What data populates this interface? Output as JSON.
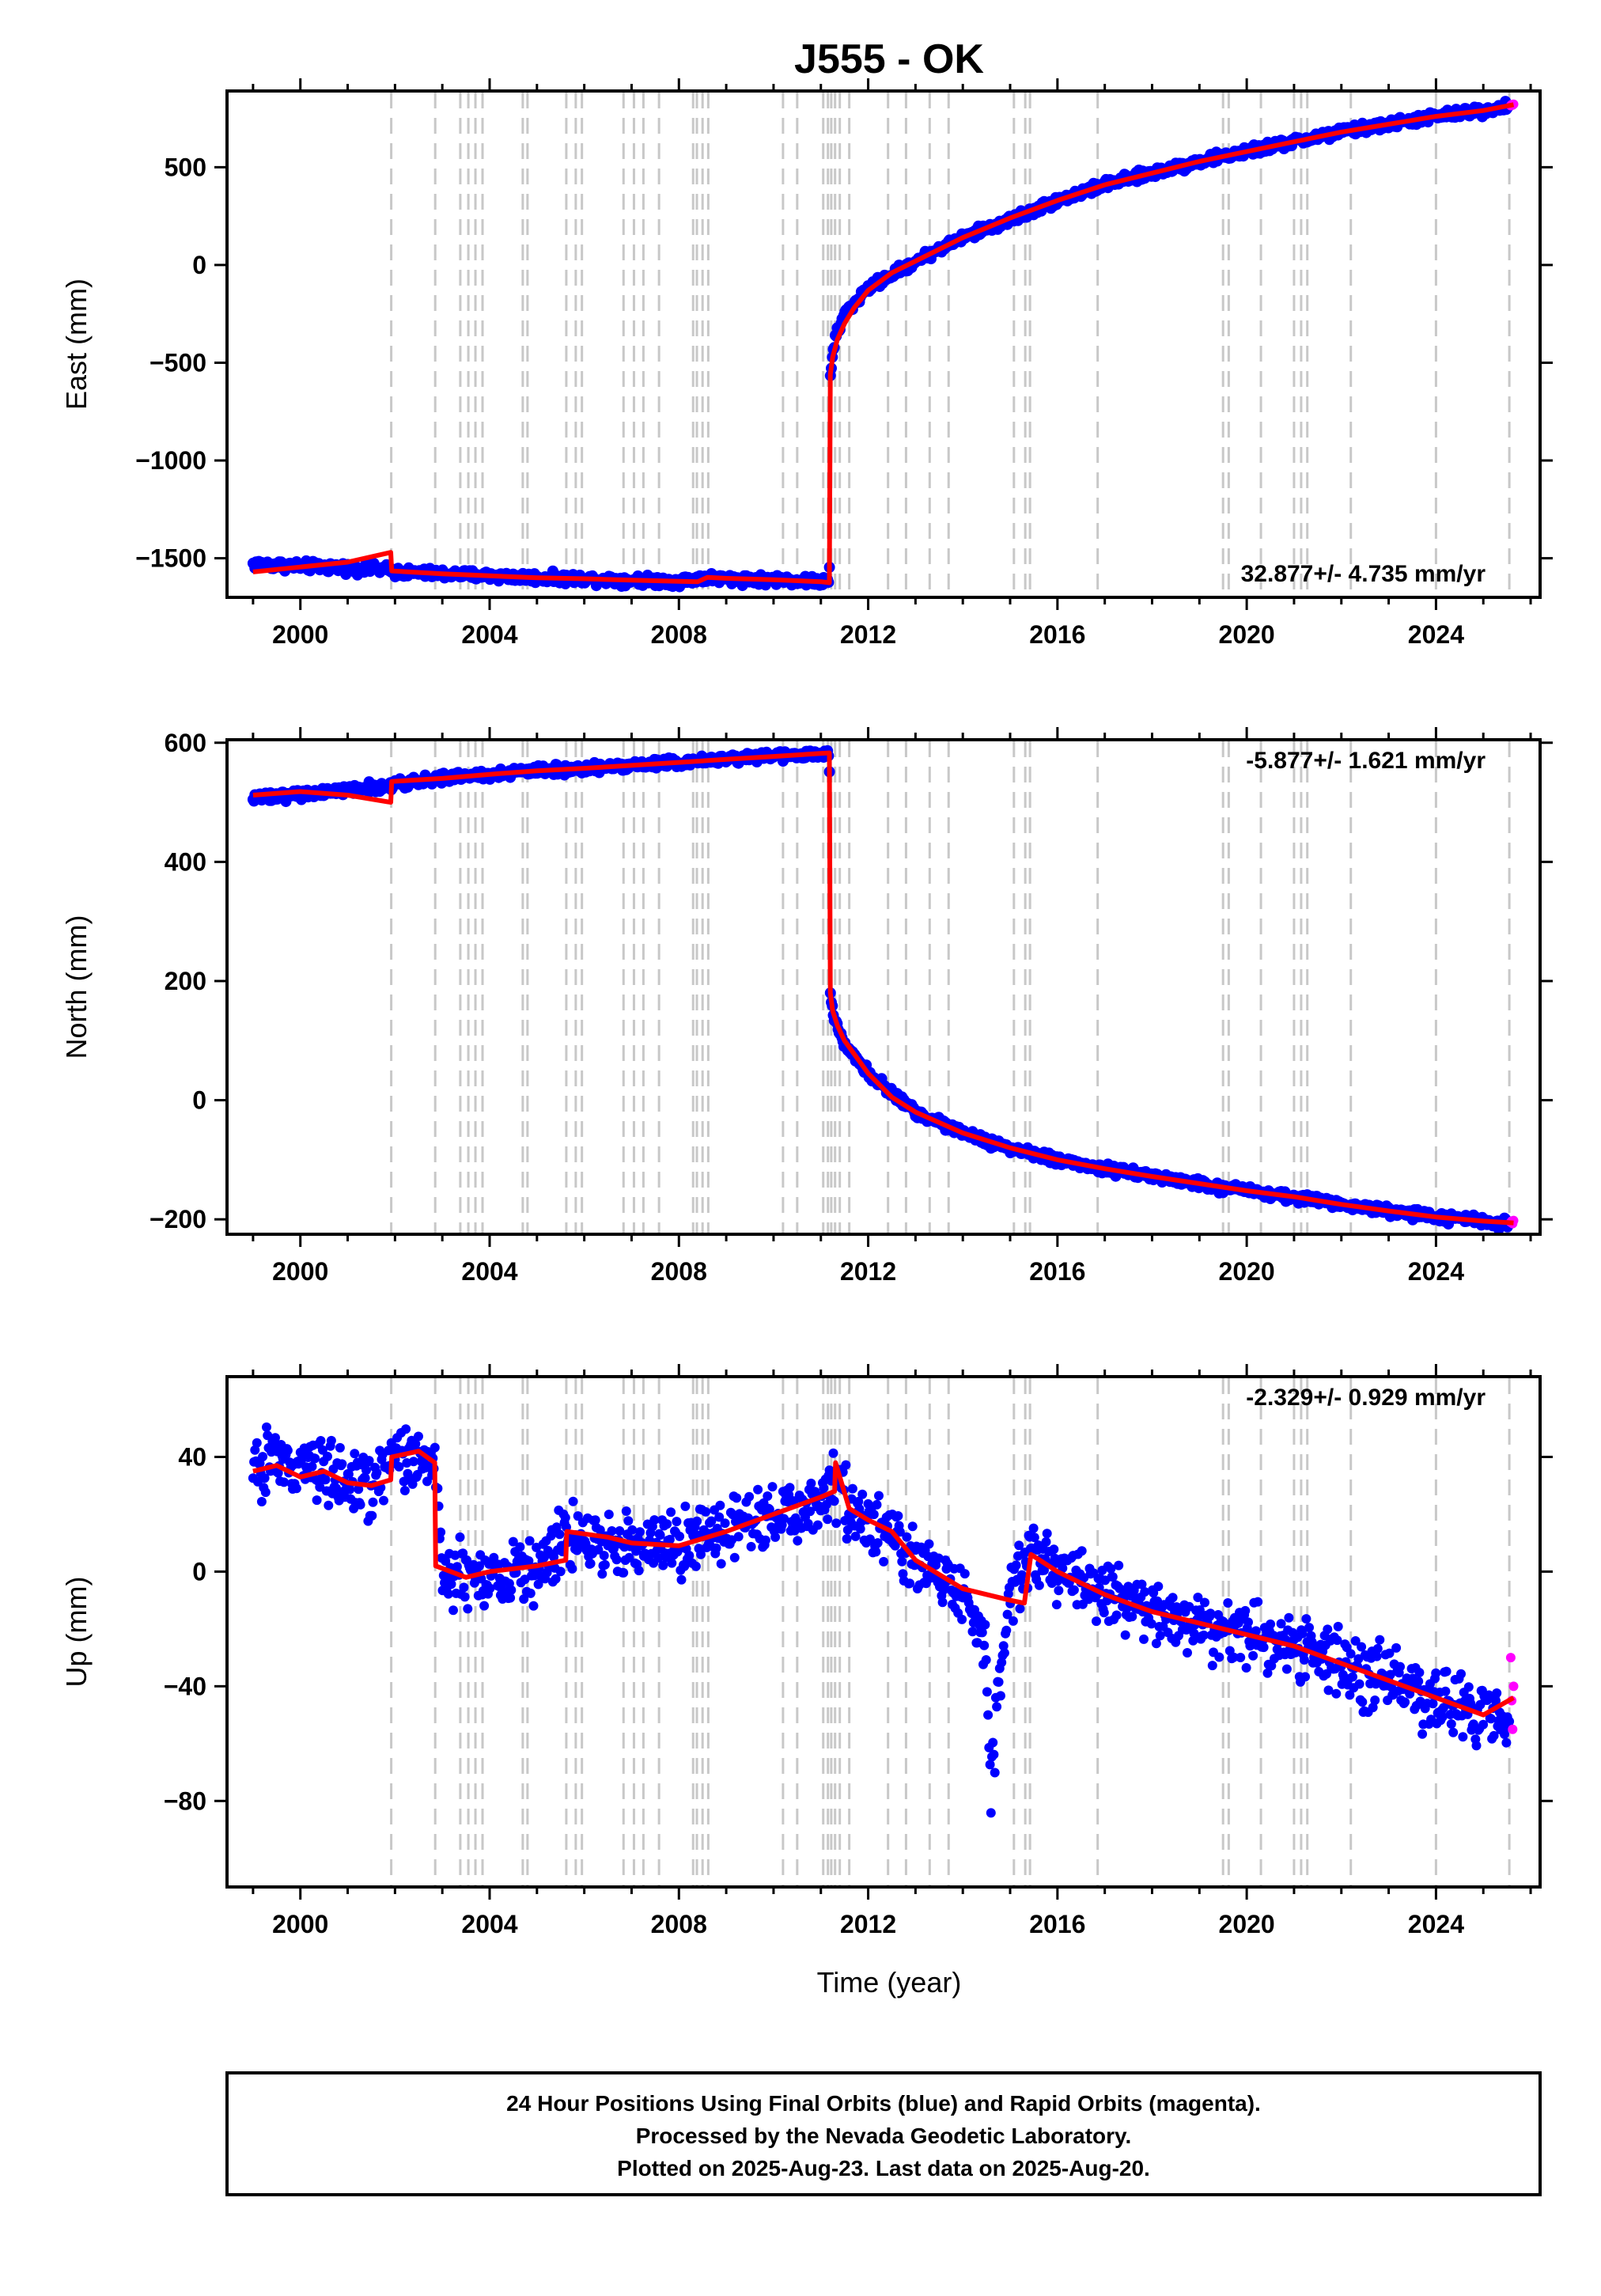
{
  "title": "J555 - OK",
  "colors": {
    "final": "#0000ff",
    "rapid": "#ff00ff",
    "model": "#ff0000",
    "event": "#c8c8c8"
  },
  "xlabel": "Time (year)",
  "x_ticks": [
    "2000",
    "2004",
    "2008",
    "2012",
    "2016",
    "2020",
    "2024"
  ],
  "events": [
    2001.92,
    2002.85,
    2003.38,
    2003.55,
    2003.7,
    2003.85,
    2004.7,
    2004.8,
    2005.62,
    2005.82,
    2005.95,
    2006.83,
    2007.05,
    2007.25,
    2007.58,
    2008.3,
    2008.38,
    2008.5,
    2008.62,
    2010.2,
    2010.5,
    2011.05,
    2011.15,
    2011.22,
    2011.3,
    2011.4,
    2011.6,
    2012.42,
    2012.8,
    2013.3,
    2013.7,
    2015.08,
    2015.32,
    2015.42,
    2016.85,
    2019.5,
    2019.62,
    2020.3,
    2021.0,
    2021.15,
    2021.28,
    2022.2,
    2024.0,
    2025.55
  ],
  "footer": {
    "line1": "24 Hour Positions Using Final Orbits (blue) and Rapid Orbits (magenta).",
    "line2": "Processed by the Nevada Geodetic Laboratory.",
    "line3": "Plotted on 2025-Aug-23. Last data on 2025-Aug-20."
  },
  "chart_data": [
    {
      "type": "scatter",
      "name": "east",
      "ylabel": "East (mm)",
      "rate_label": "32.877+/- 4.735 mm/yr",
      "xlim": [
        1998.45,
        2026.2
      ],
      "ylim": [
        -1700,
        890
      ],
      "y_ticks": [
        {
          "value": 500,
          "label": "500"
        },
        {
          "value": 0,
          "label": "0"
        },
        {
          "value": -500,
          "label": "−500"
        },
        {
          "value": -1000,
          "label": "−1000"
        },
        {
          "value": -1500,
          "label": "−1500"
        }
      ],
      "series": [
        {
          "name": "final",
          "x": [
            1999.0,
            1999.5,
            2000.0,
            2000.5,
            2001.0,
            2001.5,
            2001.92,
            2002.0,
            2003.0,
            2004.0,
            2005.0,
            2006.0,
            2007.0,
            2008.0,
            2008.5,
            2009.0,
            2010.0,
            2011.0,
            2011.18,
            2011.2,
            2011.3,
            2011.5,
            2012.0,
            2013.0,
            2014.0,
            2015.0,
            2016.0,
            2017.0,
            2018.0,
            2019.0,
            2020.0,
            2021.0,
            2022.0,
            2023.0,
            2024.0,
            2025.0,
            2025.55
          ],
          "y": [
            -1530,
            -1535,
            -1540,
            -1545,
            -1550,
            -1555,
            -1560,
            -1570,
            -1580,
            -1590,
            -1600,
            -1605,
            -1612,
            -1618,
            -1600,
            -1605,
            -1610,
            -1620,
            -1625,
            -560,
            -380,
            -250,
            -120,
            20,
            140,
            230,
            330,
            410,
            470,
            530,
            580,
            630,
            680,
            720,
            760,
            790,
            815
          ]
        },
        {
          "name": "rapid",
          "x": [
            2025.58,
            2025.6,
            2025.62,
            2025.64
          ],
          "y": [
            815,
            820,
            818,
            822
          ]
        },
        {
          "name": "model",
          "x": [
            1999.0,
            2000.0,
            2001.0,
            2001.91,
            2001.93,
            2003.0,
            2004.0,
            2005.0,
            2006.0,
            2007.0,
            2008.0,
            2008.4,
            2008.6,
            2009.0,
            2010.0,
            2011.0,
            2011.18,
            2011.2,
            2011.25,
            2011.35,
            2011.5,
            2011.7,
            2012.0,
            2012.5,
            2013.0,
            2014.0,
            2015.0,
            2016.0,
            2017.0,
            2018.0,
            2019.0,
            2020.0,
            2021.0,
            2022.0,
            2023.0,
            2024.0,
            2025.0,
            2025.64
          ],
          "y": [
            -1570,
            -1545,
            -1520,
            -1470,
            -1565,
            -1580,
            -1590,
            -1600,
            -1605,
            -1612,
            -1618,
            -1620,
            -1598,
            -1603,
            -1610,
            -1620,
            -1625,
            -560,
            -470,
            -380,
            -300,
            -220,
            -130,
            -40,
            20,
            140,
            240,
            330,
            410,
            470,
            530,
            580,
            630,
            680,
            720,
            760,
            790,
            820
          ]
        }
      ]
    },
    {
      "type": "scatter",
      "name": "north",
      "ylabel": "North (mm)",
      "rate_label": "-5.877+/- 1.621 mm/yr",
      "xlim": [
        1998.45,
        2026.2
      ],
      "ylim": [
        -225,
        605
      ],
      "y_ticks": [
        {
          "value": 600,
          "label": "600"
        },
        {
          "value": 400,
          "label": "400"
        },
        {
          "value": 200,
          "label": "200"
        },
        {
          "value": 0,
          "label": "0"
        },
        {
          "value": -200,
          "label": "−200"
        }
      ],
      "series": [
        {
          "name": "final",
          "x": [
            1999.0,
            1999.5,
            2000.0,
            2000.5,
            2001.0,
            2001.5,
            2001.92,
            2002.0,
            2003.0,
            2004.0,
            2005.0,
            2006.0,
            2007.0,
            2008.0,
            2009.0,
            2010.0,
            2011.0,
            2011.18,
            2011.2,
            2011.3,
            2011.5,
            2011.8,
            2012.0,
            2013.0,
            2014.0,
            2015.0,
            2016.0,
            2017.0,
            2018.0,
            2019.0,
            2020.0,
            2021.0,
            2022.0,
            2023.0,
            2024.0,
            2025.0,
            2025.55
          ],
          "y": [
            505,
            510,
            513,
            516,
            520,
            524,
            528,
            532,
            540,
            547,
            553,
            557,
            562,
            567,
            572,
            577,
            582,
            584,
            180,
            130,
            95,
            65,
            45,
            -20,
            -55,
            -80,
            -100,
            -115,
            -128,
            -140,
            -152,
            -162,
            -175,
            -186,
            -196,
            -203,
            -208
          ]
        },
        {
          "name": "rapid",
          "x": [
            2025.58,
            2025.6,
            2025.62,
            2025.64
          ],
          "y": [
            -205,
            -203,
            -207,
            -202
          ]
        },
        {
          "name": "model",
          "x": [
            1999.0,
            2000.0,
            2001.0,
            2001.91,
            2001.93,
            2003.0,
            2004.0,
            2005.0,
            2006.0,
            2007.0,
            2008.0,
            2009.0,
            2010.0,
            2011.0,
            2011.18,
            2011.2,
            2011.25,
            2011.35,
            2011.5,
            2011.7,
            2012.0,
            2012.5,
            2013.0,
            2014.0,
            2015.0,
            2016.0,
            2017.0,
            2018.0,
            2019.0,
            2020.0,
            2021.0,
            2022.0,
            2023.0,
            2024.0,
            2025.0,
            2025.64
          ],
          "y": [
            512,
            518,
            512,
            500,
            535,
            540,
            547,
            553,
            557,
            562,
            567,
            572,
            577,
            582,
            583,
            180,
            150,
            125,
            100,
            78,
            45,
            5,
            -20,
            -55,
            -80,
            -100,
            -115,
            -128,
            -140,
            -152,
            -162,
            -175,
            -186,
            -196,
            -203,
            -206
          ]
        }
      ]
    },
    {
      "type": "scatter",
      "name": "up",
      "ylabel": "Up (mm)",
      "rate_label": "-2.329+/- 0.929 mm/yr",
      "xlim": [
        1998.45,
        2026.2
      ],
      "ylim": [
        -110,
        68
      ],
      "y_ticks": [
        {
          "value": 40,
          "label": "40"
        },
        {
          "value": 0,
          "label": "0"
        },
        {
          "value": -40,
          "label": "−40"
        },
        {
          "value": -80,
          "label": "−80"
        }
      ],
      "series": [
        {
          "name": "final",
          "x": [
            1999.0,
            1999.5,
            2000.0,
            2000.5,
            2001.0,
            2001.5,
            2001.92,
            2002.5,
            2002.85,
            2003.0,
            2004.0,
            2005.0,
            2005.62,
            2006.0,
            2007.0,
            2008.0,
            2009.0,
            2010.0,
            2011.0,
            2011.3,
            2011.6,
            2012.0,
            2012.5,
            2013.0,
            2014.0,
            2014.5,
            2014.6,
            2014.75,
            2015.0,
            2015.4,
            2016.0,
            2017.0,
            2018.0,
            2019.0,
            2020.0,
            2021.0,
            2022.0,
            2023.0,
            2024.0,
            2025.0,
            2025.55
          ],
          "y": [
            35,
            40,
            33,
            36,
            32,
            30,
            38,
            40,
            35,
            0,
            -2,
            2,
            12,
            10,
            8,
            9,
            15,
            20,
            24,
            32,
            22,
            18,
            14,
            4,
            -6,
            -30,
            -80,
            -40,
            -8,
            4,
            0,
            -8,
            -14,
            -18,
            -22,
            -26,
            -32,
            -38,
            -44,
            -50,
            -52
          ]
        },
        {
          "name": "rapid",
          "x": [
            2025.58,
            2025.6,
            2025.62,
            2025.64
          ],
          "y": [
            -30,
            -45,
            -55,
            -40
          ]
        },
        {
          "name": "model",
          "x": [
            1999.0,
            1999.5,
            2000.0,
            2000.5,
            2001.0,
            2001.5,
            2001.91,
            2001.93,
            2002.5,
            2002.84,
            2002.86,
            2003.5,
            2004.0,
            2005.0,
            2005.61,
            2005.63,
            2006.5,
            2007.0,
            2008.0,
            2009.0,
            2010.0,
            2011.0,
            2011.29,
            2011.31,
            2011.6,
            2012.0,
            2012.5,
            2013.0,
            2014.0,
            2015.0,
            2015.3,
            2015.44,
            2016.0,
            2017.0,
            2018.0,
            2019.0,
            2020.0,
            2021.0,
            2022.0,
            2023.0,
            2024.0,
            2025.0,
            2025.64
          ],
          "y": [
            35,
            37,
            33,
            35,
            31,
            30,
            32,
            40,
            42,
            38,
            2,
            -2,
            0,
            2,
            4,
            14,
            12,
            10,
            9,
            14,
            20,
            26,
            28,
            38,
            22,
            18,
            14,
            4,
            -6,
            -10,
            -11,
            6,
            0,
            -8,
            -14,
            -18,
            -22,
            -26,
            -32,
            -38,
            -44,
            -50,
            -44
          ]
        }
      ]
    }
  ]
}
